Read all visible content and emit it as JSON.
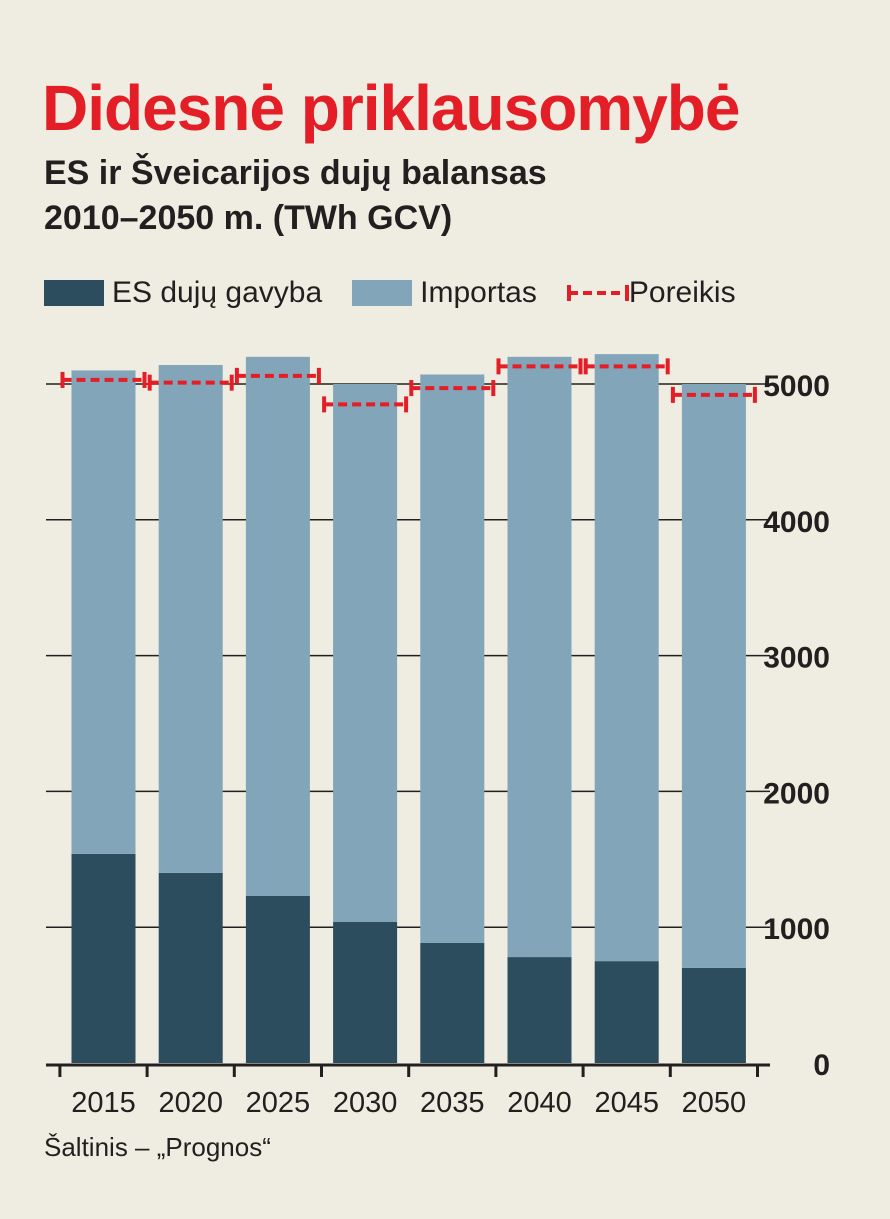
{
  "header": {
    "title": "Didesnė priklausomybė",
    "subtitle_line1": "ES ir Šveicarijos dujų balansas",
    "subtitle_line2": "2010–2050 m. (TWh GCV)"
  },
  "legend": [
    {
      "label": "ES dujų gavyba",
      "color": "#2b4d5e",
      "kind": "swatch"
    },
    {
      "label": "Importas",
      "color": "#82a5b9",
      "kind": "swatch"
    },
    {
      "label": "Poreikis",
      "color": "#e41e26",
      "kind": "dashed"
    }
  ],
  "source": "Šaltinis – „Prognos“",
  "chart_data": {
    "type": "bar",
    "stacked": true,
    "categories": [
      "2015",
      "2020",
      "2025",
      "2030",
      "2035",
      "2040",
      "2045",
      "2050"
    ],
    "series": [
      {
        "name": "ES dujų gavyba",
        "color": "#2b4d5e",
        "values": [
          1540,
          1400,
          1230,
          1040,
          885,
          780,
          750,
          700
        ]
      },
      {
        "name": "Importas",
        "color": "#82a5b9",
        "values": [
          3560,
          3740,
          3970,
          3960,
          4185,
          4420,
          4470,
          4300
        ]
      }
    ],
    "line_series": {
      "name": "Poreikis",
      "color": "#e41e26",
      "values": [
        5030,
        5010,
        5060,
        4850,
        4970,
        5130,
        5130,
        4920
      ]
    },
    "ylim": [
      0,
      5000
    ],
    "yticks": [
      "0",
      "1000",
      "2000",
      "3000",
      "4000",
      "5000"
    ],
    "axis_position": "right",
    "grid": true
  }
}
